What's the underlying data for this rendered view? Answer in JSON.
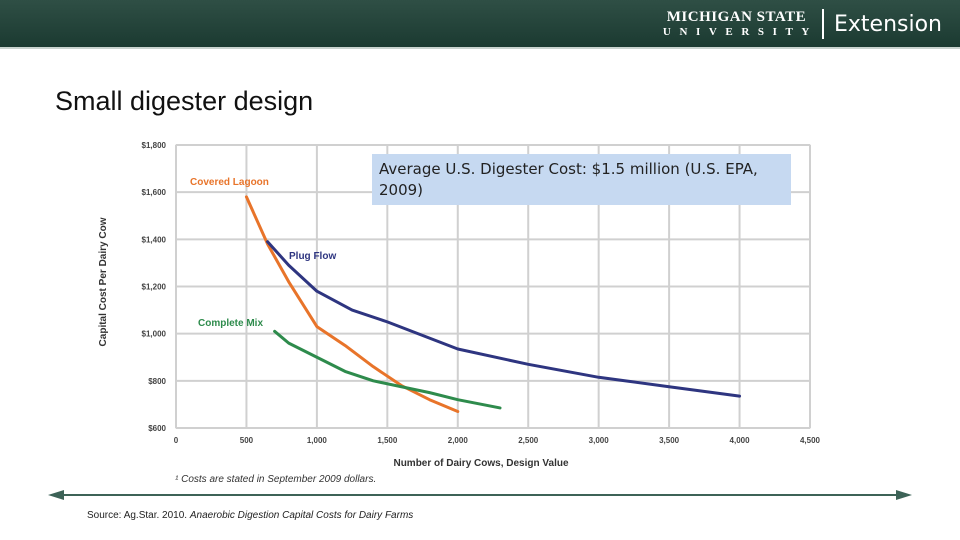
{
  "header": {
    "brand_top": "MICHIGAN STATE",
    "brand_bottom": "UNIVERSITY",
    "brand_ext": "Extension",
    "bar_color": "#1f3d34"
  },
  "slide": {
    "title": "Small digester design",
    "annotation": "Average U.S. Digester Cost: $1.5 million (U.S. EPA, 2009)",
    "source_prefix": "Source: Ag.Star. 2010.",
    "source_title": "Anaerobic Digestion Capital Costs for Dairy Farms"
  },
  "chart_data": {
    "type": "line",
    "xlabel": "Number of Dairy Cows, Design Value",
    "ylabel": "Capital Cost Per Dairy Cow",
    "footnote": "¹ Costs are stated in September 2009 dollars.",
    "xlim": [
      0,
      4500
    ],
    "ylim": [
      600,
      1800
    ],
    "x_ticks": [
      0,
      500,
      1000,
      1500,
      2000,
      2500,
      3000,
      3500,
      4000,
      4500
    ],
    "x_tick_labels": [
      "0",
      "500",
      "1,000",
      "1,500",
      "2,000",
      "2,500",
      "3,000",
      "3,500",
      "4,000",
      "4,500"
    ],
    "y_ticks": [
      600,
      800,
      1000,
      1200,
      1400,
      1600,
      1800
    ],
    "y_tick_labels": [
      "$600",
      "$800",
      "$1,000",
      "$1,200",
      "$1,400",
      "$1,600",
      "$1,800"
    ],
    "grid": true,
    "series": [
      {
        "name": "Covered Lagoon",
        "color": "#e8742a",
        "x": [
          500,
          650,
          800,
          1000,
          1200,
          1400,
          1600,
          1800,
          2000
        ],
        "y": [
          1580,
          1380,
          1220,
          1030,
          950,
          860,
          780,
          720,
          670
        ]
      },
      {
        "name": "Plug Flow",
        "color": "#2e3580",
        "x": [
          650,
          800,
          1000,
          1250,
          1500,
          2000,
          2500,
          3000,
          3500,
          4000
        ],
        "y": [
          1390,
          1290,
          1180,
          1100,
          1050,
          935,
          870,
          815,
          775,
          735
        ]
      },
      {
        "name": "Complete Mix",
        "color": "#2e8b4c",
        "x": [
          700,
          800,
          1000,
          1200,
          1400,
          1600,
          1800,
          2000,
          2300
        ],
        "y": [
          1010,
          960,
          900,
          840,
          800,
          775,
          750,
          720,
          685
        ]
      }
    ]
  }
}
